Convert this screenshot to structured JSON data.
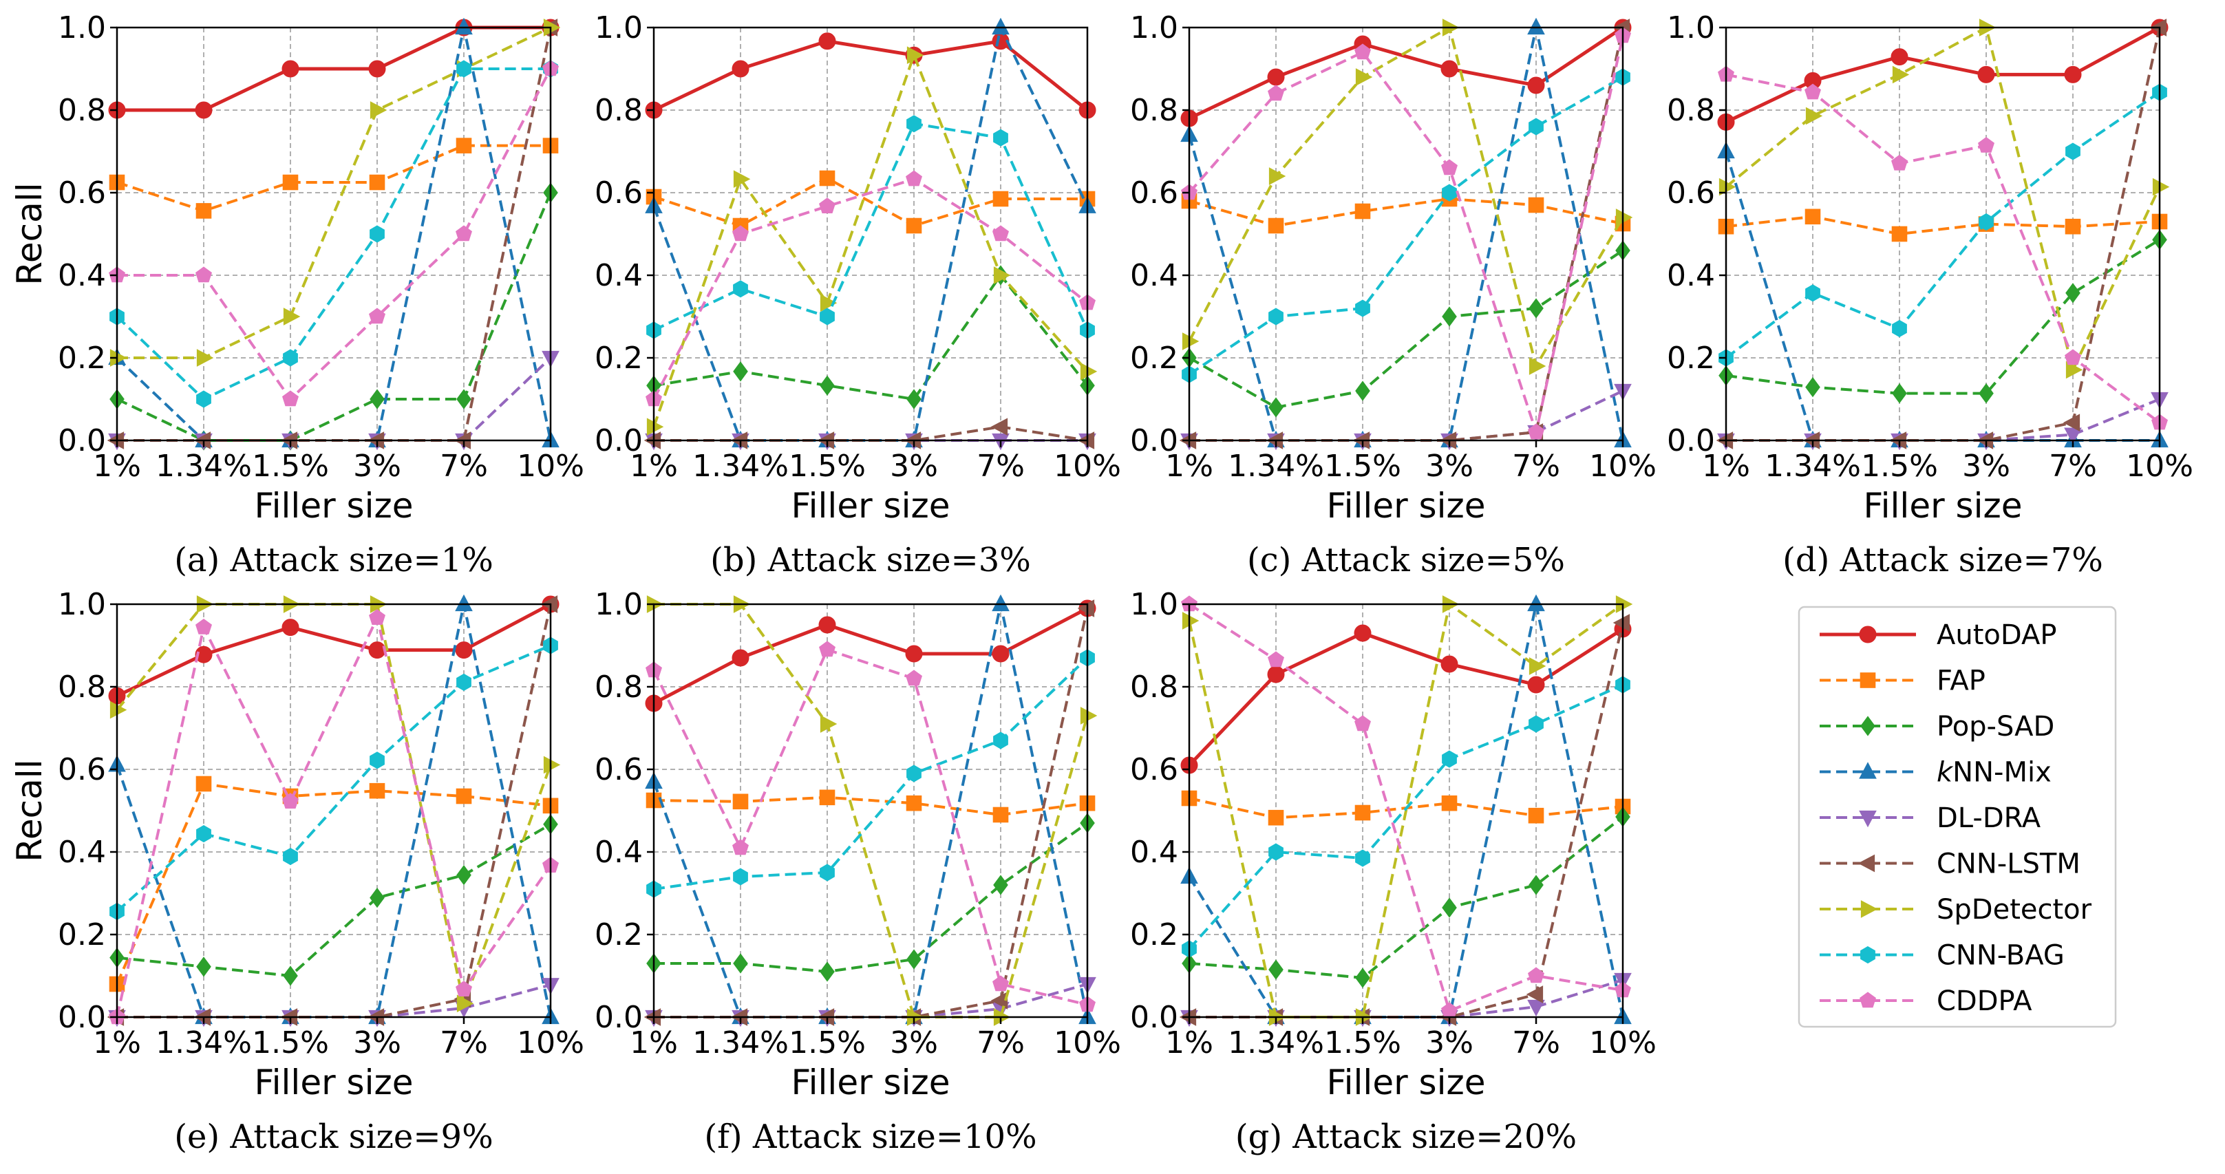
{
  "chart_data": [
    {
      "type": "line",
      "caption": "(a) Attack size=1%",
      "xlabel": "Filler size",
      "ylabel": "Recall",
      "categories": [
        "1%",
        "1.34%",
        "1.5%",
        "3%",
        "7%",
        "10%"
      ],
      "ylim": [
        0,
        1.0
      ],
      "yticks": [
        "0.0",
        "0.2",
        "0.4",
        "0.6",
        "0.8",
        "1.0"
      ],
      "grid": true,
      "series": [
        {
          "name": "AutoDAP",
          "values": [
            0.8,
            0.8,
            0.9,
            0.9,
            1.0,
            1.0
          ]
        },
        {
          "name": "FAP",
          "values": [
            0.625,
            0.556,
            0.625,
            0.625,
            0.714,
            0.714
          ]
        },
        {
          "name": "Pop-SAD",
          "values": [
            0.1,
            0.0,
            0.0,
            0.1,
            0.1,
            0.6
          ]
        },
        {
          "name": "kNN-Mix",
          "values": [
            0.2,
            0.0,
            0.0,
            0.0,
            1.0,
            0.0
          ]
        },
        {
          "name": "DL-DRA",
          "values": [
            0.0,
            0.0,
            0.0,
            0.0,
            0.0,
            0.2
          ]
        },
        {
          "name": "CNN-LSTM",
          "values": [
            0.0,
            0.0,
            0.0,
            0.0,
            0.0,
            1.0
          ]
        },
        {
          "name": "SpDetector",
          "values": [
            0.2,
            0.2,
            0.3,
            0.8,
            0.9,
            1.0
          ]
        },
        {
          "name": "CNN-BAG",
          "values": [
            0.3,
            0.1,
            0.2,
            0.5,
            0.9,
            0.9
          ]
        },
        {
          "name": "CDDPA",
          "values": [
            0.4,
            0.4,
            0.1,
            0.3,
            0.5,
            0.9
          ]
        }
      ]
    },
    {
      "type": "line",
      "caption": "(b) Attack size=3%",
      "xlabel": "Filler size",
      "ylabel": "",
      "categories": [
        "1%",
        "1.34%",
        "1.5%",
        "3%",
        "7%",
        "10%"
      ],
      "ylim": [
        0,
        1.0
      ],
      "yticks": [
        "0.0",
        "0.2",
        "0.4",
        "0.6",
        "0.8",
        "1.0"
      ],
      "grid": true,
      "series": [
        {
          "name": "AutoDAP",
          "values": [
            0.8,
            0.9,
            0.967,
            0.933,
            0.967,
            0.8
          ]
        },
        {
          "name": "FAP",
          "values": [
            0.59,
            0.52,
            0.635,
            0.52,
            0.585,
            0.585
          ]
        },
        {
          "name": "Pop-SAD",
          "values": [
            0.133,
            0.167,
            0.133,
            0.1,
            0.4,
            0.133
          ]
        },
        {
          "name": "kNN-Mix",
          "values": [
            0.567,
            0.0,
            0.0,
            0.0,
            1.0,
            0.567
          ]
        },
        {
          "name": "DL-DRA",
          "values": [
            0.0,
            0.0,
            0.0,
            0.0,
            0.0,
            0.0
          ]
        },
        {
          "name": "CNN-LSTM",
          "values": [
            0.0,
            0.0,
            0.0,
            0.0,
            0.033,
            0.0
          ]
        },
        {
          "name": "SpDetector",
          "values": [
            0.033,
            0.633,
            0.333,
            0.933,
            0.4,
            0.167
          ]
        },
        {
          "name": "CNN-BAG",
          "values": [
            0.267,
            0.367,
            0.3,
            0.767,
            0.733,
            0.267
          ]
        },
        {
          "name": "CDDPA",
          "values": [
            0.1,
            0.5,
            0.567,
            0.633,
            0.5,
            0.333
          ]
        }
      ]
    },
    {
      "type": "line",
      "caption": "(c) Attack size=5%",
      "xlabel": "Filler size",
      "ylabel": "",
      "categories": [
        "1%",
        "1.34%",
        "1.5%",
        "3%",
        "7%",
        "10%"
      ],
      "ylim": [
        0,
        1.0
      ],
      "yticks": [
        "0.0",
        "0.2",
        "0.4",
        "0.6",
        "0.8",
        "1.0"
      ],
      "grid": true,
      "series": [
        {
          "name": "AutoDAP",
          "values": [
            0.78,
            0.88,
            0.96,
            0.9,
            0.86,
            1.0
          ]
        },
        {
          "name": "FAP",
          "values": [
            0.58,
            0.52,
            0.555,
            0.585,
            0.57,
            0.525
          ]
        },
        {
          "name": "Pop-SAD",
          "values": [
            0.2,
            0.08,
            0.12,
            0.3,
            0.32,
            0.46
          ]
        },
        {
          "name": "kNN-Mix",
          "values": [
            0.74,
            0.0,
            0.0,
            0.0,
            1.0,
            0.0
          ]
        },
        {
          "name": "DL-DRA",
          "values": [
            0.0,
            0.0,
            0.0,
            0.0,
            0.02,
            0.12
          ]
        },
        {
          "name": "CNN-LSTM",
          "values": [
            0.0,
            0.0,
            0.0,
            0.0,
            0.02,
            1.0
          ]
        },
        {
          "name": "SpDetector",
          "values": [
            0.24,
            0.64,
            0.88,
            1.0,
            0.18,
            0.54
          ]
        },
        {
          "name": "CNN-BAG",
          "values": [
            0.16,
            0.3,
            0.32,
            0.6,
            0.76,
            0.88
          ]
        },
        {
          "name": "CDDPA",
          "values": [
            0.6,
            0.84,
            0.94,
            0.66,
            0.02,
            0.98
          ]
        }
      ]
    },
    {
      "type": "line",
      "caption": "(d) Attack size=7%",
      "xlabel": "Filler size",
      "ylabel": "",
      "categories": [
        "1%",
        "1.34%",
        "1.5%",
        "3%",
        "7%",
        "10%"
      ],
      "ylim": [
        0,
        1.0
      ],
      "yticks": [
        "0.0",
        "0.2",
        "0.4",
        "0.6",
        "0.8",
        "1.0"
      ],
      "grid": true,
      "series": [
        {
          "name": "AutoDAP",
          "values": [
            0.771,
            0.871,
            0.929,
            0.886,
            0.886,
            1.0
          ]
        },
        {
          "name": "FAP",
          "values": [
            0.518,
            0.542,
            0.5,
            0.524,
            0.518,
            0.53
          ]
        },
        {
          "name": "Pop-SAD",
          "values": [
            0.157,
            0.129,
            0.114,
            0.114,
            0.357,
            0.486
          ]
        },
        {
          "name": "kNN-Mix",
          "values": [
            0.7,
            0.0,
            0.0,
            0.0,
            0.0,
            0.0
          ]
        },
        {
          "name": "DL-DRA",
          "values": [
            0.0,
            0.0,
            0.0,
            0.0,
            0.014,
            0.1
          ]
        },
        {
          "name": "CNN-LSTM",
          "values": [
            0.0,
            0.0,
            0.0,
            0.0,
            0.043,
            1.0
          ]
        },
        {
          "name": "SpDetector",
          "values": [
            0.614,
            0.786,
            0.886,
            1.0,
            0.171,
            0.614
          ]
        },
        {
          "name": "CNN-BAG",
          "values": [
            0.2,
            0.357,
            0.271,
            0.529,
            0.7,
            0.843
          ]
        },
        {
          "name": "CDDPA",
          "values": [
            0.886,
            0.843,
            0.671,
            0.714,
            0.2,
            0.043
          ]
        }
      ]
    },
    {
      "type": "line",
      "caption": "(e) Attack size=9%",
      "xlabel": "Filler size",
      "ylabel": "Recall",
      "categories": [
        "1%",
        "1.34%",
        "1.5%",
        "3%",
        "7%",
        "10%"
      ],
      "ylim": [
        0,
        1.0
      ],
      "yticks": [
        "0.0",
        "0.2",
        "0.4",
        "0.6",
        "0.8",
        "1.0"
      ],
      "grid": true,
      "series": [
        {
          "name": "AutoDAP",
          "values": [
            0.778,
            0.878,
            0.944,
            0.889,
            0.889,
            1.0
          ]
        },
        {
          "name": "FAP",
          "values": [
            0.08,
            0.565,
            0.535,
            0.548,
            0.535,
            0.512
          ]
        },
        {
          "name": "Pop-SAD",
          "values": [
            0.144,
            0.122,
            0.1,
            0.289,
            0.344,
            0.467
          ]
        },
        {
          "name": "kNN-Mix",
          "values": [
            0.611,
            0.0,
            0.0,
            0.0,
            1.0,
            0.0
          ]
        },
        {
          "name": "DL-DRA",
          "values": [
            0.0,
            0.0,
            0.0,
            0.0,
            0.022,
            0.078
          ]
        },
        {
          "name": "CNN-LSTM",
          "values": [
            0.0,
            0.0,
            0.0,
            0.0,
            0.044,
            1.0
          ]
        },
        {
          "name": "SpDetector",
          "values": [
            0.744,
            1.0,
            1.0,
            1.0,
            0.033,
            0.611
          ]
        },
        {
          "name": "CNN-BAG",
          "values": [
            0.256,
            0.444,
            0.389,
            0.622,
            0.811,
            0.9
          ]
        },
        {
          "name": "CDDPA",
          "values": [
            0.0,
            0.944,
            0.522,
            0.967,
            0.067,
            0.367
          ]
        }
      ]
    },
    {
      "type": "line",
      "caption": "(f) Attack size=10%",
      "xlabel": "Filler size",
      "ylabel": "",
      "categories": [
        "1%",
        "1.34%",
        "1.5%",
        "3%",
        "7%",
        "10%"
      ],
      "ylim": [
        0,
        1.0
      ],
      "yticks": [
        "0.0",
        "0.2",
        "0.4",
        "0.6",
        "0.8",
        "1.0"
      ],
      "grid": true,
      "series": [
        {
          "name": "AutoDAP",
          "values": [
            0.76,
            0.87,
            0.95,
            0.88,
            0.88,
            0.99
          ]
        },
        {
          "name": "FAP",
          "values": [
            0.525,
            0.522,
            0.532,
            0.518,
            0.49,
            0.518
          ]
        },
        {
          "name": "Pop-SAD",
          "values": [
            0.13,
            0.13,
            0.11,
            0.14,
            0.32,
            0.47
          ]
        },
        {
          "name": "kNN-Mix",
          "values": [
            0.57,
            0.0,
            0.0,
            0.0,
            1.0,
            0.0
          ]
        },
        {
          "name": "DL-DRA",
          "values": [
            0.0,
            0.0,
            0.0,
            0.0,
            0.02,
            0.08
          ]
        },
        {
          "name": "CNN-LSTM",
          "values": [
            0.0,
            0.0,
            0.0,
            0.0,
            0.04,
            0.99
          ]
        },
        {
          "name": "SpDetector",
          "values": [
            1.0,
            1.0,
            0.71,
            0.0,
            0.0,
            0.73
          ]
        },
        {
          "name": "CNN-BAG",
          "values": [
            0.31,
            0.34,
            0.35,
            0.59,
            0.67,
            0.87
          ]
        },
        {
          "name": "CDDPA",
          "values": [
            0.84,
            0.41,
            0.89,
            0.82,
            0.08,
            0.03
          ]
        }
      ]
    },
    {
      "type": "line",
      "caption": "(g) Attack size=20%",
      "xlabel": "Filler size",
      "ylabel": "",
      "categories": [
        "1%",
        "1.34%",
        "1.5%",
        "3%",
        "7%",
        "10%"
      ],
      "ylim": [
        0,
        1.0
      ],
      "yticks": [
        "0.0",
        "0.2",
        "0.4",
        "0.6",
        "0.8",
        "1.0"
      ],
      "grid": true,
      "series": [
        {
          "name": "AutoDAP",
          "values": [
            0.61,
            0.83,
            0.93,
            0.855,
            0.805,
            0.94
          ]
        },
        {
          "name": "FAP",
          "values": [
            0.53,
            0.483,
            0.495,
            0.518,
            0.488,
            0.51
          ]
        },
        {
          "name": "Pop-SAD",
          "values": [
            0.13,
            0.115,
            0.095,
            0.265,
            0.32,
            0.485
          ]
        },
        {
          "name": "kNN-Mix",
          "values": [
            0.34,
            0.0,
            0.0,
            0.0,
            1.0,
            0.0
          ]
        },
        {
          "name": "DL-DRA",
          "values": [
            0.0,
            0.0,
            0.0,
            0.0,
            0.025,
            0.09
          ]
        },
        {
          "name": "CNN-LSTM",
          "values": [
            0.0,
            0.0,
            0.0,
            0.0,
            0.055,
            0.955
          ]
        },
        {
          "name": "SpDetector",
          "values": [
            0.96,
            0.0,
            0.0,
            1.0,
            0.85,
            1.0
          ]
        },
        {
          "name": "CNN-BAG",
          "values": [
            0.165,
            0.4,
            0.385,
            0.625,
            0.71,
            0.805
          ]
        },
        {
          "name": "CDDPA",
          "values": [
            1.0,
            0.865,
            0.71,
            0.015,
            0.1,
            0.065
          ]
        }
      ]
    }
  ],
  "legend": {
    "placement": "bottom-right",
    "items": [
      {
        "label": "AutoDAP",
        "color": "#d62728",
        "marker": "circle"
      },
      {
        "label": "FAP",
        "color": "#ff7f0e",
        "marker": "square"
      },
      {
        "label": "Pop-SAD",
        "color": "#2ca02c",
        "marker": "diamond"
      },
      {
        "label": "kNN-Mix",
        "color": "#1f77b4",
        "marker": "triangle-up"
      },
      {
        "label": "DL-DRA",
        "color": "#9467bd",
        "marker": "triangle-down"
      },
      {
        "label": "CNN-LSTM",
        "color": "#8c564b",
        "marker": "triangle-left"
      },
      {
        "label": "SpDetector",
        "color": "#bcbd22",
        "marker": "triangle-right"
      },
      {
        "label": "CNN-BAG",
        "color": "#17becf",
        "marker": "hexagon"
      },
      {
        "label": "CDDPA",
        "color": "#e377c2",
        "marker": "pentagon"
      }
    ]
  }
}
